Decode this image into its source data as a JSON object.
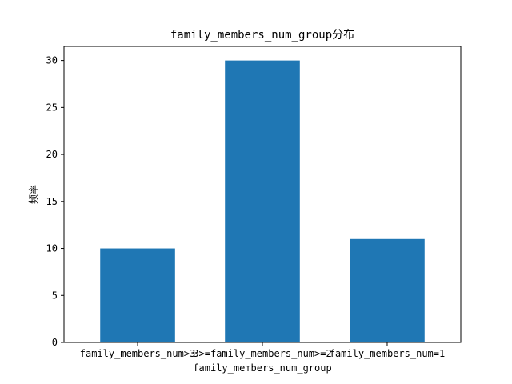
{
  "chart_data": {
    "type": "bar",
    "title": "family_members_num_group分布",
    "xlabel": "family_members_num_group",
    "ylabel": "频率",
    "categories": [
      "family_members_num>3",
      "3>=family_members_num>=2",
      "family_members_num=1"
    ],
    "values": [
      10,
      30,
      11
    ],
    "ylim": [
      0,
      31.5
    ],
    "yticks": [
      0,
      5,
      10,
      15,
      20,
      25,
      30
    ],
    "bar_color": "#1f77b4",
    "grid": false,
    "legend": "none"
  }
}
